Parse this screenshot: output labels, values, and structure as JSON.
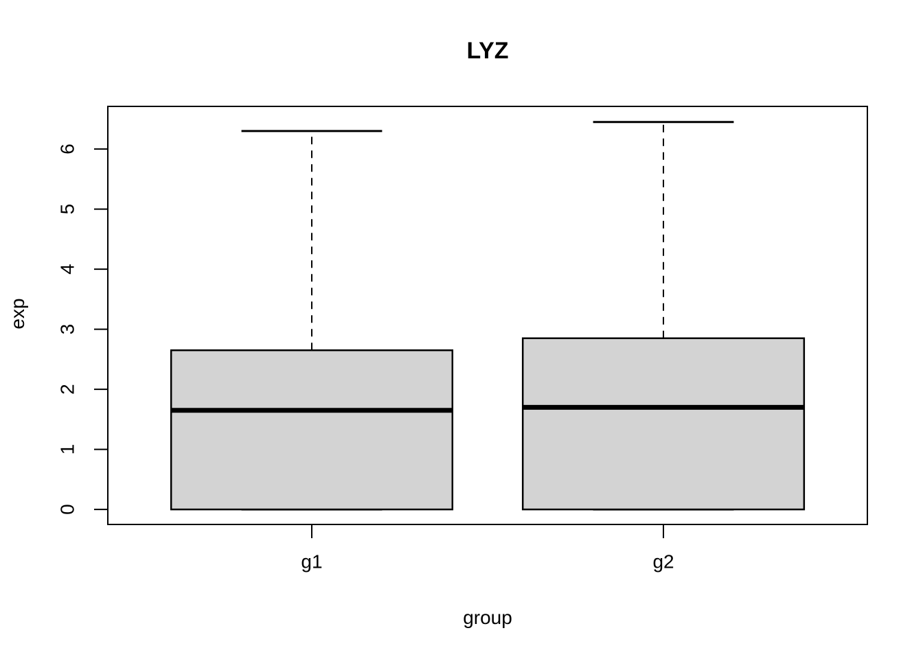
{
  "chart_data": {
    "type": "boxplot",
    "title": "LYZ",
    "xlabel": "group",
    "ylabel": "exp",
    "y_ticks": [
      0,
      1,
      2,
      3,
      4,
      5,
      6
    ],
    "ylim": [
      -0.25,
      6.71
    ],
    "xlim": [
      0.42,
      2.58
    ],
    "box_width": 0.8,
    "cap_width": 0.4,
    "grid": false,
    "legend": null,
    "colors": {
      "box_fill": "#d3d3d3",
      "line": "#000000",
      "background": "#ffffff"
    },
    "groups": [
      {
        "label": "g1",
        "position": 1,
        "min": 0,
        "q1": 0,
        "median": 1.65,
        "q3": 2.65,
        "max": 6.3,
        "outliers": []
      },
      {
        "label": "g2",
        "position": 2,
        "min": 0,
        "q1": 0,
        "median": 1.7,
        "q3": 2.85,
        "max": 6.45,
        "outliers": []
      }
    ]
  }
}
